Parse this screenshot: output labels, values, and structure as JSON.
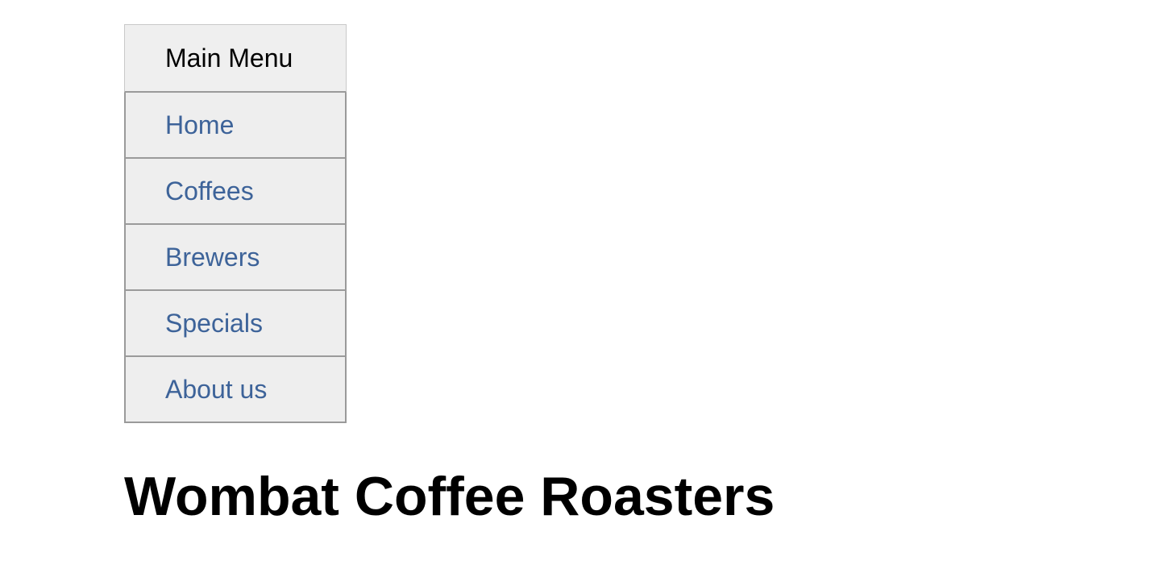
{
  "menu": {
    "header_label": "Main Menu",
    "items": [
      {
        "label": "Home"
      },
      {
        "label": "Coffees"
      },
      {
        "label": "Brewers"
      },
      {
        "label": "Specials"
      },
      {
        "label": "About us"
      }
    ],
    "link_color": "#3d6399",
    "background_color": "#eeeeee",
    "border_color": "#9a9a9a"
  },
  "page": {
    "title": "Wombat Coffee Roasters"
  }
}
